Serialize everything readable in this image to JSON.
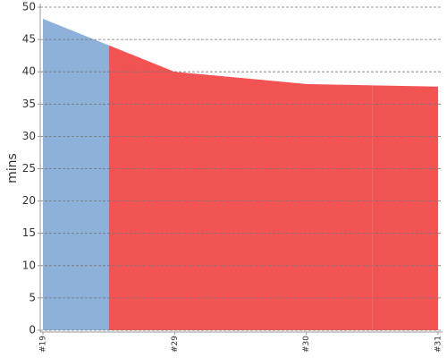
{
  "chart_data": {
    "type": "area",
    "ylabel": "mins",
    "categories": [
      "#19",
      "#29",
      "#30",
      "#31"
    ],
    "values": [
      48.2,
      40.0,
      38.1,
      37.7
    ],
    "colors": [
      "#8eb1da",
      "#f25353",
      "#f25353",
      "#f25353"
    ],
    "ylim": [
      0,
      50
    ],
    "yticks": [
      0,
      5,
      10,
      15,
      20,
      25,
      30,
      35,
      40,
      45,
      50
    ],
    "grid": true
  }
}
